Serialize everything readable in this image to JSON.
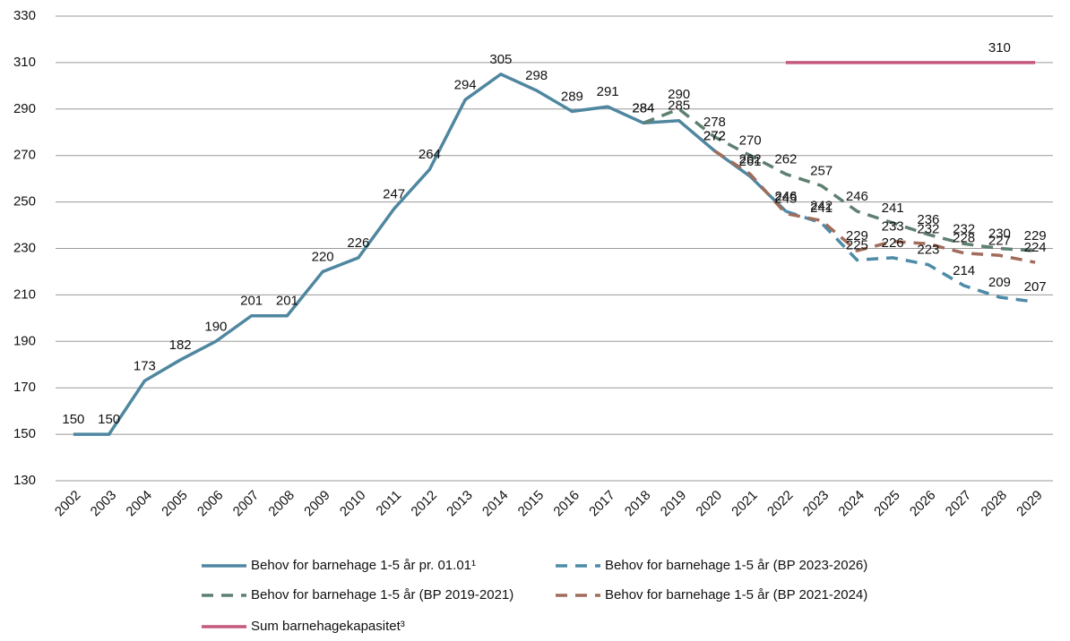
{
  "chart_data": {
    "type": "line",
    "x": [
      2002,
      2003,
      2004,
      2005,
      2006,
      2007,
      2008,
      2009,
      2010,
      2011,
      2012,
      2013,
      2014,
      2015,
      2016,
      2017,
      2018,
      2019,
      2020,
      2021,
      2022,
      2023,
      2024,
      2025,
      2026,
      2027,
      2028,
      2029
    ],
    "ylim": [
      130,
      330
    ],
    "yticks": [
      130,
      150,
      170,
      190,
      210,
      230,
      250,
      270,
      290,
      310,
      330
    ],
    "grid": true,
    "series": [
      {
        "name": "Behov for barnehage 1-5 år pr. 01.01¹",
        "color": "#4f86a0",
        "dash": false,
        "values": [
          150,
          150,
          173,
          182,
          190,
          201,
          201,
          220,
          226,
          247,
          264,
          294,
          305,
          298,
          289,
          291,
          284,
          285,
          272,
          261,
          246,
          null,
          null,
          null,
          null,
          null,
          null,
          null
        ]
      },
      {
        "name": "Behov for barnehage 1-5 år (BP 2023-2026)",
        "color": "#4d8ba8",
        "dash": true,
        "values": [
          null,
          null,
          null,
          null,
          null,
          null,
          null,
          null,
          null,
          null,
          null,
          null,
          null,
          null,
          null,
          null,
          null,
          null,
          null,
          null,
          246,
          241,
          225,
          226,
          223,
          214,
          209,
          207
        ]
      },
      {
        "name": "Behov for barnehage 1-5 år (BP 2019-2021)",
        "color": "#5e8070",
        "dash": true,
        "values": [
          null,
          null,
          null,
          null,
          null,
          null,
          null,
          null,
          null,
          null,
          null,
          null,
          null,
          null,
          null,
          null,
          284,
          290,
          278,
          270,
          262,
          257,
          246,
          241,
          236,
          232,
          230,
          229
        ]
      },
      {
        "name": "Behov for barnehage 1-5 år (BP 2021-2024)",
        "color": "#a06d5c",
        "dash": true,
        "values": [
          null,
          null,
          null,
          null,
          null,
          null,
          null,
          null,
          null,
          null,
          null,
          null,
          null,
          null,
          null,
          null,
          null,
          null,
          272,
          262,
          245,
          242,
          229,
          233,
          232,
          228,
          227,
          224
        ]
      },
      {
        "name": "Sum barnehagekapasitet³",
        "color": "#c4587f",
        "dash": false,
        "values": [
          null,
          null,
          null,
          null,
          null,
          null,
          null,
          null,
          null,
          null,
          null,
          null,
          null,
          null,
          null,
          null,
          null,
          null,
          null,
          null,
          310,
          310,
          310,
          310,
          310,
          310,
          310,
          310
        ],
        "value_labels": [
          null,
          null,
          null,
          null,
          null,
          null,
          null,
          null,
          null,
          null,
          null,
          null,
          null,
          null,
          null,
          null,
          null,
          null,
          null,
          null,
          null,
          null,
          null,
          null,
          null,
          null,
          "310",
          null
        ]
      }
    ]
  }
}
